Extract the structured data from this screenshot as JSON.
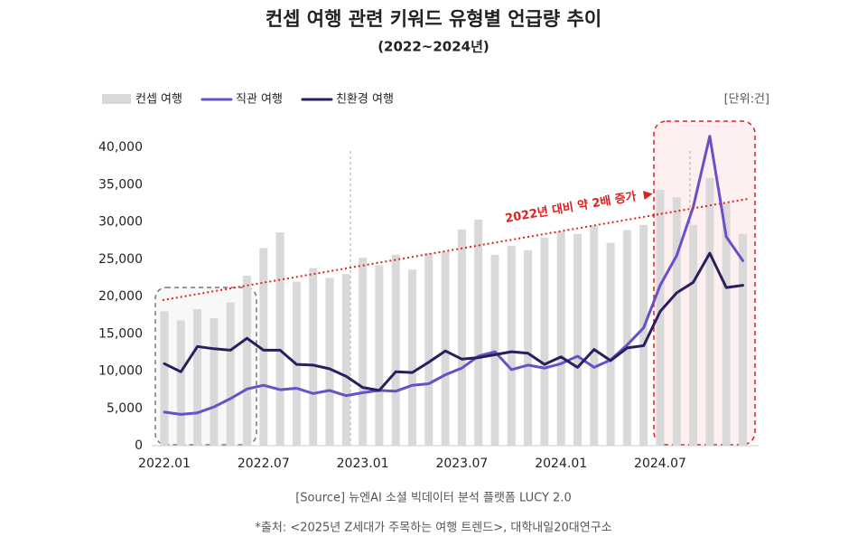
{
  "chart_data": {
    "type": "bar",
    "title": "컨셉 여행 관련 키워드 유형별 언급량 추이",
    "subtitle": "(2022~2024년)",
    "unit": "[단위:건]",
    "annotation": "2022년 대비 약 2배 증가",
    "source": "[Source] 뉴엔AI 소셜 빅데이터 분석 플랫폼 LUCY 2.0",
    "note": "*출처: <2025년 Z세대가 주목하는 여행 트렌드>, 대학내일20대연구소",
    "categories": [
      "2022.01",
      null,
      null,
      null,
      null,
      null,
      "2022.07",
      null,
      null,
      null,
      null,
      null,
      "2023.01",
      null,
      null,
      null,
      null,
      null,
      "2023.07",
      null,
      null,
      null,
      null,
      null,
      "2024.01",
      null,
      null,
      null,
      null,
      null,
      "2024.07",
      null,
      null,
      null,
      null,
      null
    ],
    "series": [
      {
        "name": "컨셉 여행",
        "type": "bar",
        "color": "#d9d9d9",
        "values": [
          18000,
          16800,
          18300,
          17100,
          19200,
          22800,
          26500,
          28600,
          22000,
          23800,
          22500,
          23000,
          25200,
          24200,
          25600,
          23600,
          25800,
          26000,
          29000,
          30300,
          25600,
          26800,
          26200,
          27900,
          28700,
          28400,
          29500,
          27200,
          28900,
          29600,
          34300,
          33300,
          29600,
          35900,
          32500,
          28400
        ]
      },
      {
        "name": "직관 여행",
        "type": "line",
        "color": "#6a4fc8",
        "values": [
          4500,
          4200,
          4400,
          5200,
          6300,
          7600,
          8100,
          7500,
          7700,
          7000,
          7400,
          6700,
          7100,
          7400,
          7300,
          8100,
          8300,
          9500,
          10400,
          12000,
          12600,
          10200,
          10800,
          10400,
          11000,
          12000,
          10500,
          11500,
          13500,
          15800,
          21500,
          25500,
          32000,
          41500,
          28000,
          24800
        ]
      },
      {
        "name": "친환경 여행",
        "type": "line",
        "color": "#2a1f5e",
        "values": [
          11000,
          9900,
          13300,
          13000,
          12800,
          14400,
          12800,
          12800,
          10900,
          10800,
          10300,
          9300,
          7800,
          7400,
          9900,
          9800,
          11200,
          12700,
          11600,
          11800,
          12200,
          12600,
          12400,
          10900,
          11900,
          10500,
          12900,
          11400,
          13100,
          13400,
          18000,
          20500,
          21900,
          25800,
          21200,
          21500
        ]
      }
    ],
    "ylim": [
      0,
      40000
    ],
    "yticks": [
      0,
      {
        "value": 5000,
        "label": "5,000"
      },
      {
        "value": 10000,
        "label": "10,000"
      },
      {
        "value": 15000,
        "label": "15,000"
      },
      {
        "value": 20000,
        "label": "20,000"
      },
      {
        "value": 25000,
        "label": "25,000"
      },
      {
        "value": 30000,
        "label": "30,000"
      },
      {
        "value": 35000,
        "label": "35,000"
      },
      {
        "value": 40000,
        "label": "40,000"
      }
    ]
  }
}
